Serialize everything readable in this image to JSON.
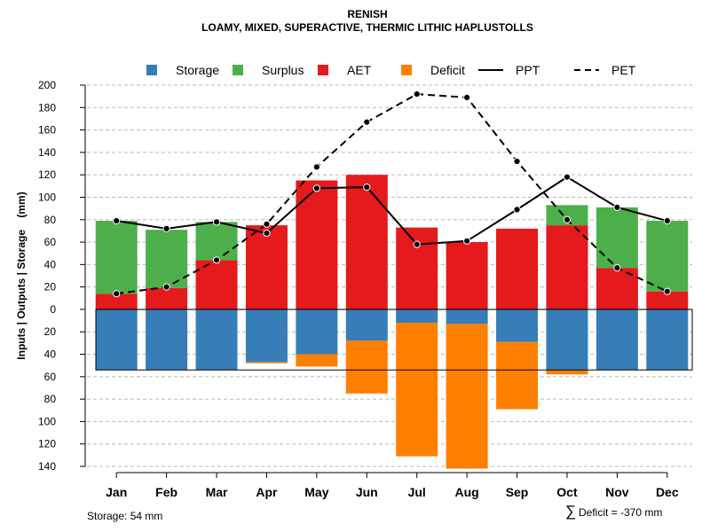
{
  "chart_data": {
    "type": "bar",
    "title": "RENISH",
    "subtitle": "LOAMY, MIXED, SUPERACTIVE, THERMIC LITHIC HAPLUSTOLLS",
    "ylabel": "Inputs | Outputs | Storage    (mm)",
    "ylim": [
      -140,
      200
    ],
    "yticks": [
      200,
      180,
      160,
      140,
      120,
      100,
      80,
      60,
      40,
      20,
      0,
      -20,
      -40,
      -60,
      -80,
      -100,
      -120,
      -140
    ],
    "ytick_labels": [
      "200",
      "180",
      "160",
      "140",
      "120",
      "100",
      "80",
      "60",
      "40",
      "20",
      "0",
      "20",
      "40",
      "60",
      "80",
      "100",
      "120",
      "140"
    ],
    "grid": true,
    "categories": [
      "Jan",
      "Feb",
      "Mar",
      "Apr",
      "May",
      "Jun",
      "Jul",
      "Aug",
      "Sep",
      "Oct",
      "Nov",
      "Dec"
    ],
    "legend": {
      "position": "top",
      "items": [
        {
          "name": "Storage",
          "kind": "box",
          "color": "#377EB8"
        },
        {
          "name": "Surplus",
          "kind": "box",
          "color": "#4DAF4A"
        },
        {
          "name": "AET",
          "kind": "box",
          "color": "#E41A1C"
        },
        {
          "name": "Deficit",
          "kind": "box",
          "color": "#FF7F00"
        },
        {
          "name": "PPT",
          "kind": "solid",
          "color": "#000000"
        },
        {
          "name": "PET",
          "kind": "dashed",
          "color": "#000000"
        }
      ]
    },
    "series": [
      {
        "name": "AET",
        "color": "#E41A1C",
        "values": [
          14,
          19,
          44,
          75,
          115,
          120,
          73,
          60,
          72,
          75,
          37,
          16
        ]
      },
      {
        "name": "Surplus",
        "color": "#4DAF4A",
        "values": [
          65,
          52,
          34,
          0,
          0,
          0,
          0,
          0,
          0,
          18,
          54,
          63
        ]
      },
      {
        "name": "Storage",
        "color": "#377EB8",
        "values": [
          54,
          54,
          54,
          47,
          40,
          28,
          12,
          13,
          29,
          54,
          54,
          54
        ]
      },
      {
        "name": "Deficit",
        "color": "#FF7F00",
        "values": [
          0,
          0,
          0,
          1,
          11,
          47,
          119,
          129,
          60,
          4,
          0,
          0
        ]
      },
      {
        "name": "PPT",
        "color": "#000000",
        "values": [
          79,
          72,
          78,
          68,
          108,
          109,
          58,
          61,
          89,
          118,
          91,
          79
        ]
      },
      {
        "name": "PET",
        "color": "#000000",
        "values": [
          14,
          20,
          44,
          76,
          127,
          167,
          192,
          189,
          132,
          80,
          37,
          16
        ]
      }
    ],
    "storage_capacity": 54,
    "footer_left": "Storage: 54 mm",
    "footer_right_symbol": "∑",
    "footer_right": "Deficit = -370 mm"
  }
}
